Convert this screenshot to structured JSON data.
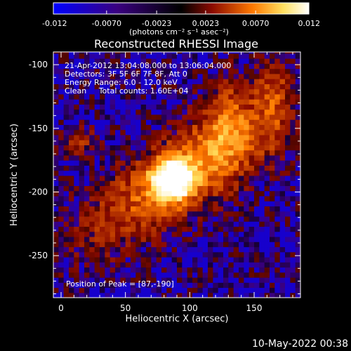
{
  "chart_data": {
    "type": "heatmap",
    "title": "Reconstructed RHESSI Image",
    "xlabel": "Heliocentric X (arcsec)",
    "ylabel": "Heliocentric Y (arcsec)",
    "xlim": [
      -6,
      186
    ],
    "ylim": [
      -283,
      -90
    ],
    "x_ticks": [
      "0",
      "50",
      "100",
      "150"
    ],
    "x_tick_values": [
      0,
      50,
      100,
      150
    ],
    "y_ticks": [
      "-100",
      "-150",
      "-200",
      "-250"
    ],
    "y_tick_values": [
      -100,
      -150,
      -200,
      -250
    ],
    "grid": false,
    "colorbar": {
      "min": -0.012,
      "max": 0.012,
      "tick_labels": [
        "-0.012",
        "-0.0070",
        "-0.0023",
        "0.0023",
        "0.0070",
        "0.012"
      ],
      "tick_values": [
        -0.012,
        -0.007,
        -0.0023,
        0.0023,
        0.007,
        0.012
      ],
      "unit_label": "(photons cm⁻² s⁻¹ asec⁻²)",
      "colors": [
        "#0000ff",
        "#3a0080",
        "#000000",
        "#8a0a00",
        "#ff7a00",
        "#ffe060",
        "#ffffff"
      ]
    },
    "info_lines": [
      "21-Apr-2012 13:04:08.000 to 13:06:04.000",
      "Detectors: 3F 5F 6F 7F 8F, Att 0",
      "Energy Range: 6.0 - 12.0 keV",
      "Clean     Total counts: 1.60E+04"
    ],
    "peak_label": "Position of Peak = [87,-190]",
    "peak": [
      87,
      -190
    ]
  },
  "footer": {
    "date": "10-May-2022 00:38"
  }
}
